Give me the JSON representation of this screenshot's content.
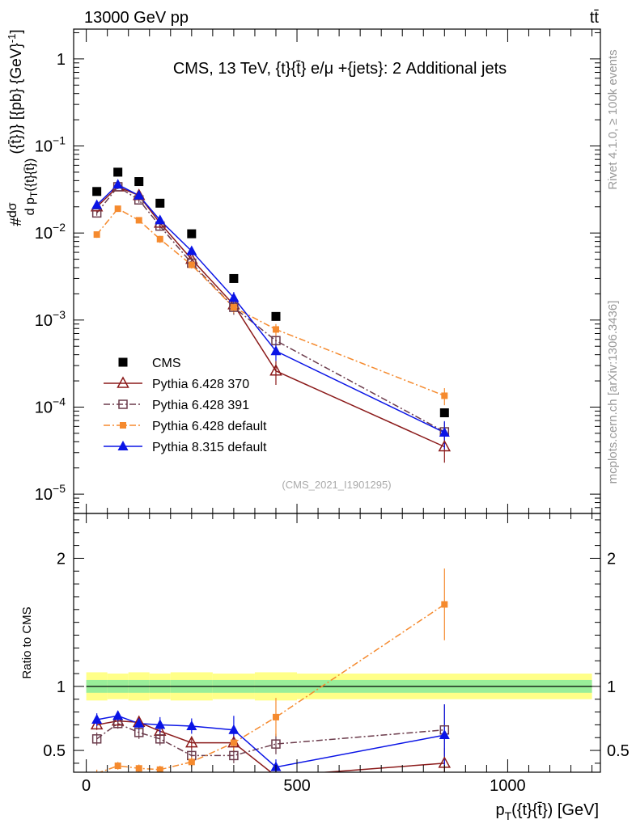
{
  "header": {
    "left": "13000 GeV pp",
    "right": "tt̄"
  },
  "side_text": {
    "rivet": "Rivet 4.1.0, ≥ 100k events",
    "mcplots": "mcplots.cern.ch [arXiv:1306.3436]"
  },
  "chart_data": {
    "type": "line",
    "title": "CMS, 13 TeV, {t}{t̄} e/μ +{jets}: 2 Additional jets",
    "watermark": "(CMS_2021_I1901295)",
    "xlabel": "p_T({t}{t̄}) [GeV]",
    "xlabel_main": "p",
    "xlabel_sub": "T",
    "xlabel_rest": "({t}{t̄}) [GeV]",
    "xlim": [
      -30,
      1220
    ],
    "xticks": [
      0,
      500,
      1000
    ],
    "xtick_labels": [
      "0",
      "500",
      "1000"
    ],
    "main": {
      "yscale": "log",
      "ylim": [
        6e-06,
        2.2
      ],
      "ytick_values": [
        1,
        0.1,
        0.01,
        0.001,
        0.0001,
        1e-05
      ],
      "ytick_labels": [
        {
          "base": "1",
          "exp": ""
        },
        {
          "base": "10",
          "exp": "−1"
        },
        {
          "base": "10",
          "exp": "−2"
        },
        {
          "base": "10",
          "exp": "−3"
        },
        {
          "base": "10",
          "exp": "−4"
        },
        {
          "base": "10",
          "exp": "−5"
        }
      ],
      "ylabel": "#dσ/dp_T({t}{t̄}) [{pb} {GeV}^-1]"
    },
    "ratio": {
      "ylim": [
        0.33,
        2.35
      ],
      "yticks": [
        0.5,
        1,
        2
      ],
      "ytick_labels": [
        "0.5",
        "1",
        "2"
      ],
      "ylabel": "Ratio to CMS",
      "band_inner": [
        0.95,
        1.05
      ],
      "band_outer": [
        0.9,
        1.1
      ]
    },
    "bins": [
      [
        0,
        50
      ],
      [
        50,
        100
      ],
      [
        100,
        150
      ],
      [
        150,
        200
      ],
      [
        200,
        300
      ],
      [
        300,
        400
      ],
      [
        400,
        500
      ],
      [
        500,
        1200
      ]
    ],
    "x": [
      25,
      75,
      125,
      175,
      250,
      350,
      450,
      850
    ],
    "series": [
      {
        "name": "CMS",
        "color": "#000000",
        "marker": "square-filled",
        "line": "none",
        "values": [
          0.03,
          0.05,
          0.039,
          0.022,
          0.0098,
          0.003,
          0.0011,
          8.6e-05
        ],
        "errors": [
          0,
          0,
          0,
          0,
          0,
          0,
          0,
          0
        ],
        "ratio": [
          1,
          1,
          1,
          1,
          1,
          1,
          1,
          1
        ],
        "ratio_err": [
          0,
          0,
          0,
          0,
          0,
          0,
          0,
          0
        ]
      },
      {
        "name": "Pythia 6.428 370",
        "color": "#8b1a1a",
        "marker": "triangle-open",
        "line": "solid",
        "values": [
          0.02,
          0.034,
          0.027,
          0.013,
          0.005,
          0.0015,
          0.00026,
          3.5e-05
        ],
        "errors": [
          0.0012,
          0.002,
          0.0018,
          0.001,
          0.0004,
          0.00025,
          8e-05,
          1.2e-05
        ],
        "ratio": [
          0.7,
          0.73,
          0.72,
          0.65,
          0.56,
          0.56,
          0.3,
          0.4
        ],
        "ratio_err": [
          0.04,
          0.04,
          0.05,
          0.05,
          0.05,
          0.08,
          0.1,
          0.12
        ]
      },
      {
        "name": "Pythia 6.428 391",
        "color": "#6b3b4b",
        "marker": "square-open",
        "line": "dashdot",
        "values": [
          0.017,
          0.034,
          0.024,
          0.012,
          0.0045,
          0.0014,
          0.00058,
          5.2e-05
        ],
        "errors": [
          0.0012,
          0.002,
          0.0018,
          0.001,
          0.0004,
          0.00025,
          8e-05,
          1.5e-05
        ],
        "ratio": [
          0.59,
          0.71,
          0.64,
          0.59,
          0.46,
          0.46,
          0.55,
          0.66
        ],
        "ratio_err": [
          0.05,
          0.04,
          0.05,
          0.05,
          0.05,
          0.06,
          0.08,
          0.2
        ]
      },
      {
        "name": "Pythia 6.428 default",
        "color": "#f58a2e",
        "marker": "square-filled-small",
        "line": "dashdot",
        "values": [
          0.0096,
          0.019,
          0.014,
          0.0085,
          0.0043,
          0.0014,
          0.00078,
          0.000135
        ],
        "errors": [
          0.0008,
          0.0012,
          0.001,
          0.0008,
          0.0004,
          0.0002,
          0.00012,
          3e-05
        ],
        "ratio": [
          0.32,
          0.38,
          0.36,
          0.35,
          0.41,
          0.56,
          0.76,
          1.64
        ],
        "ratio_err": [
          0.03,
          0.03,
          0.03,
          0.03,
          0.04,
          0.06,
          0.15,
          0.28
        ]
      },
      {
        "name": "Pythia 8.315 default",
        "color": "#0a14e6",
        "marker": "triangle-filled",
        "line": "solid",
        "values": [
          0.021,
          0.036,
          0.027,
          0.014,
          0.0062,
          0.0018,
          0.00044,
          5.1e-05
        ],
        "errors": [
          0.0012,
          0.002,
          0.0018,
          0.001,
          0.0005,
          0.0003,
          0.0001,
          1.8e-05
        ],
        "ratio": [
          0.74,
          0.77,
          0.71,
          0.7,
          0.69,
          0.66,
          0.37,
          0.62
        ],
        "ratio_err": [
          0.05,
          0.04,
          0.05,
          0.06,
          0.06,
          0.11,
          0.06,
          0.24
        ]
      }
    ],
    "legend": {
      "placement": "lower-left"
    }
  }
}
